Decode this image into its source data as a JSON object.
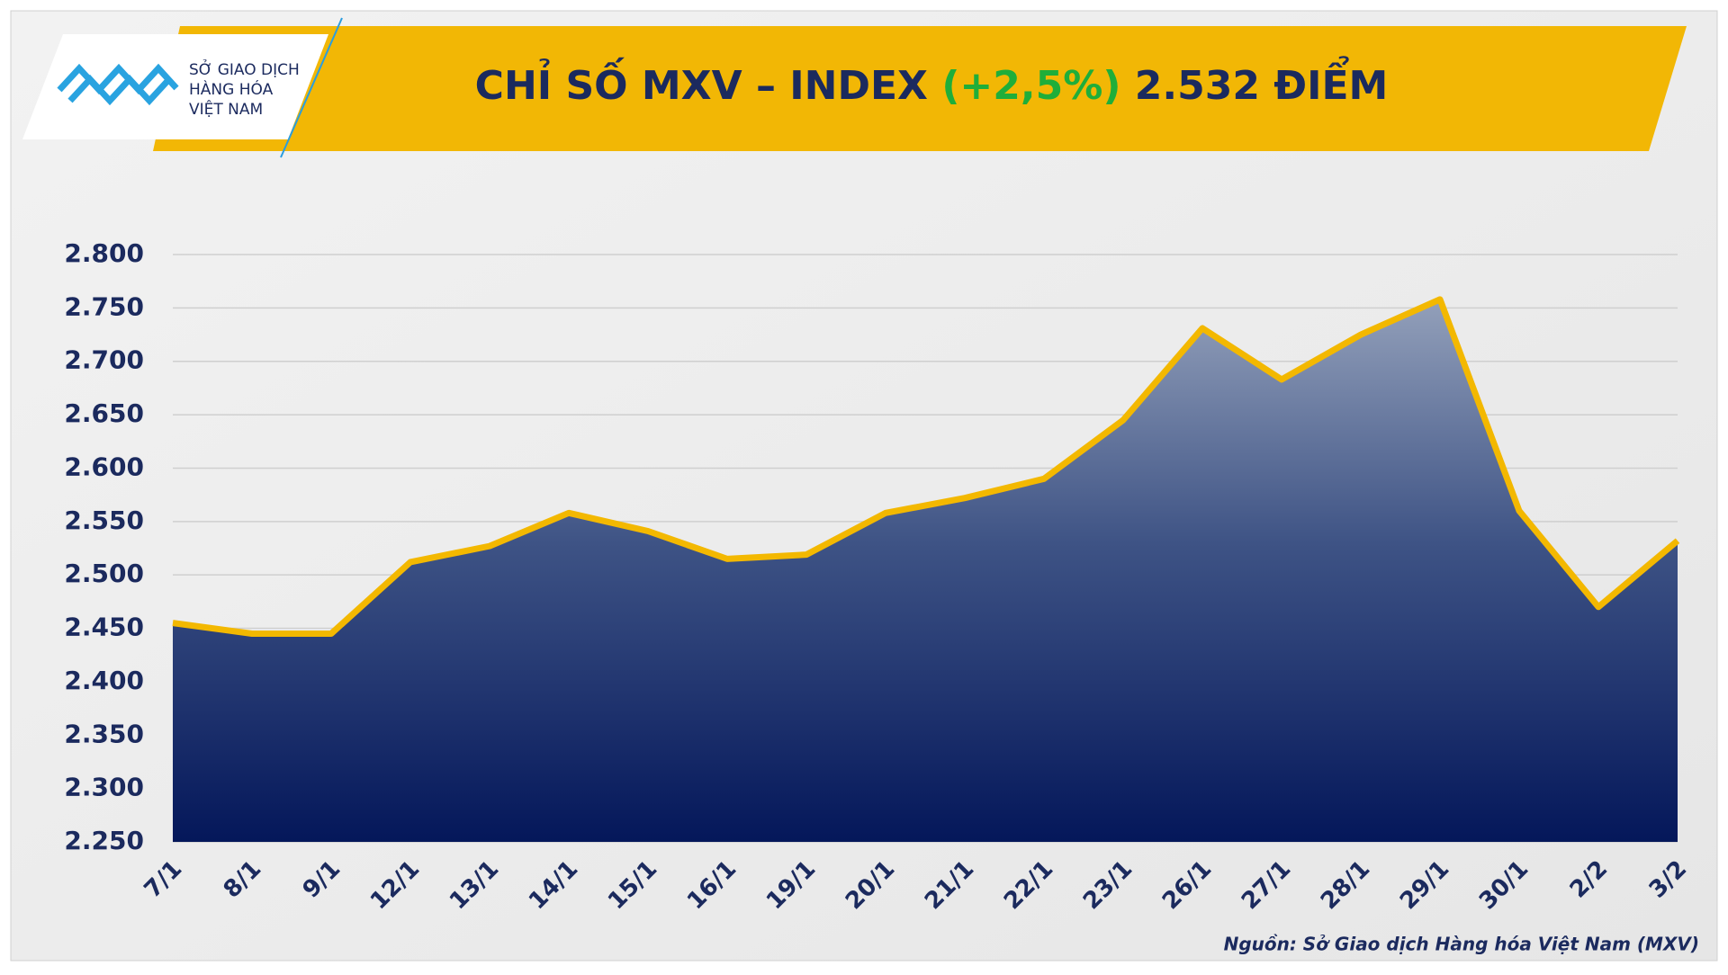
{
  "chart_data": {
    "type": "area",
    "title": "CHỈ SỐ MXV – INDEX",
    "title_change": "(+2,5%)",
    "title_value": "2.532 ĐIỂM",
    "logo": [
      "SỞ GIAO DỊCH",
      "HÀNG HÓA",
      "VIỆT NAM"
    ],
    "source": "Nguồn: Sở Giao dịch Hàng hóa Việt Nam (MXV)",
    "categories": [
      "7/1",
      "8/1",
      "9/1",
      "12/1",
      "13/1",
      "14/1",
      "15/1",
      "16/1",
      "19/1",
      "20/1",
      "21/1",
      "22/1",
      "23/1",
      "26/1",
      "27/1",
      "28/1",
      "29/1",
      "30/1",
      "2/2",
      "3/2"
    ],
    "values": [
      2455,
      2445,
      2445,
      2512,
      2527,
      2558,
      2541,
      2515,
      2519,
      2558,
      2572,
      2590,
      2645,
      2731,
      2683,
      2725,
      2758,
      2560,
      2470,
      2532
    ],
    "color": "#f3b800",
    "ylim": [
      2250,
      2800
    ],
    "yticks": [
      {
        "value": 2250,
        "label": "2.250"
      },
      {
        "value": 2300,
        "label": "2.300"
      },
      {
        "value": 2350,
        "label": "2.350"
      },
      {
        "value": 2400,
        "label": "2.400"
      },
      {
        "value": 2450,
        "label": "2.450"
      },
      {
        "value": 2500,
        "label": "2.500"
      },
      {
        "value": 2550,
        "label": "2.550"
      },
      {
        "value": 2600,
        "label": "2.600"
      },
      {
        "value": 2650,
        "label": "2.650"
      },
      {
        "value": 2700,
        "label": "2.700"
      },
      {
        "value": 2750,
        "label": "2.750"
      },
      {
        "value": 2800,
        "label": "2.800"
      }
    ],
    "grid": true
  }
}
